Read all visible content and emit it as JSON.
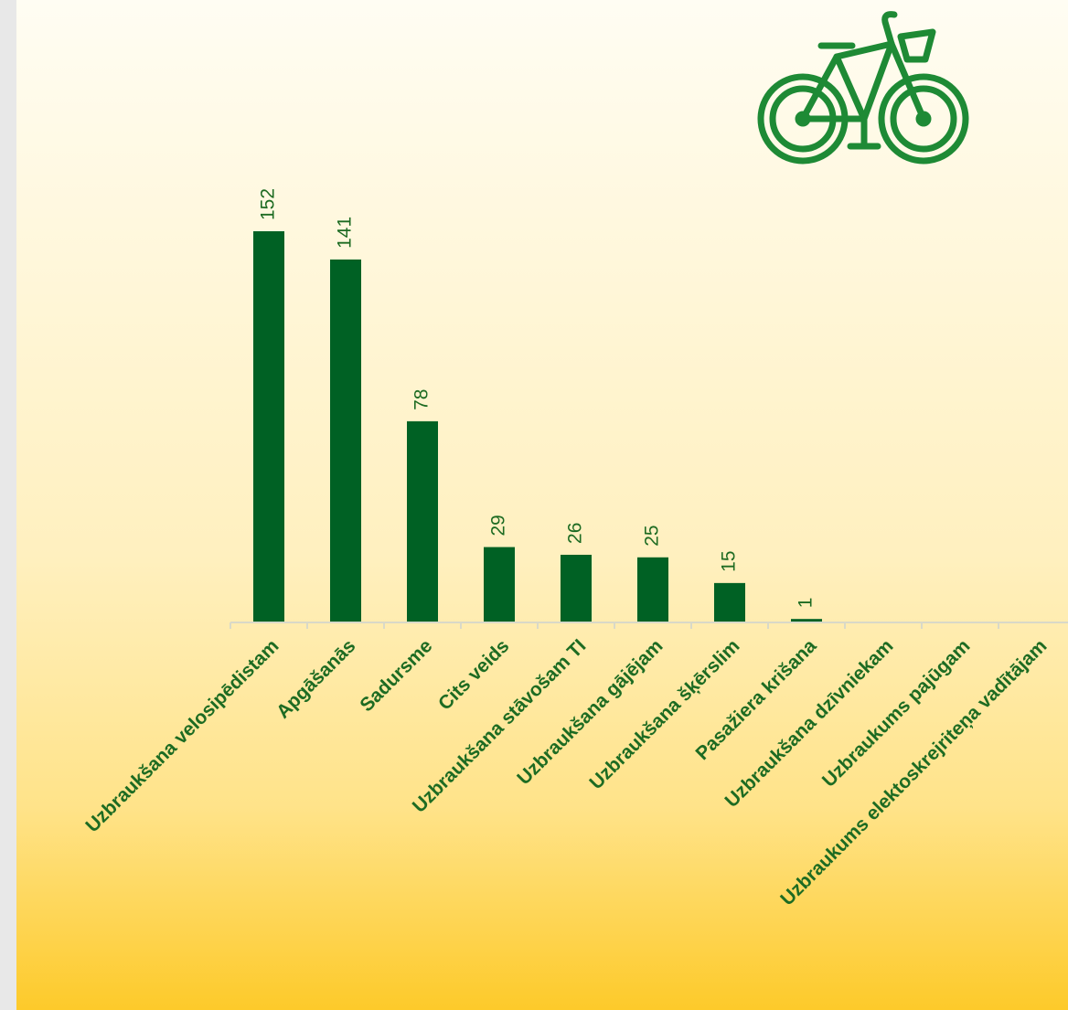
{
  "chart_data": {
    "type": "bar",
    "categories": [
      "Uzbraukšana velosipēdistam",
      "Apgāšanās",
      "Sadursme",
      "Cits veids",
      "Uzbraukšana stāvošam TI",
      "Uzbraukšana gājējam",
      "Uzbraukšana šķērslim",
      "Pasažiera krišana",
      "Uzbraukšana dzīvniekam",
      "Uzbraukums pajūgam",
      "Uzbraukums elektoskrejriteņa vadītājam"
    ],
    "values": [
      152,
      141,
      78,
      29,
      26,
      25,
      15,
      1,
      null,
      null,
      null
    ],
    "color": "#006124",
    "ylim": [
      0,
      152
    ]
  }
}
